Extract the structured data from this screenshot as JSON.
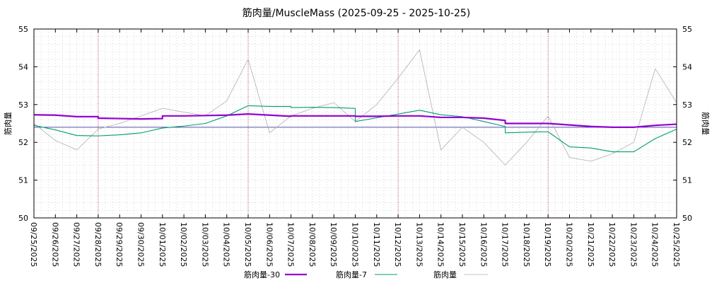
{
  "chart_data": {
    "type": "line",
    "title": "筋肉量/MuscleMass (2025-09-25 - 2025-10-25)",
    "ylabel_left": "筋肉量",
    "ylabel_right": "筋肉量",
    "ylim": [
      50,
      55
    ],
    "yticks": [
      "50",
      "51",
      "52",
      "53",
      "54",
      "55"
    ],
    "xlim": [
      0,
      30
    ],
    "grid": true,
    "xtick_labels": [
      "09/25/2025",
      "09/26/2025",
      "09/27/2025",
      "09/28/2025",
      "09/29/2025",
      "09/30/2025",
      "10/01/2025",
      "10/02/2025",
      "10/03/2025",
      "10/04/2025",
      "10/05/2025",
      "10/06/2025",
      "10/07/2025",
      "10/08/2025",
      "10/09/2025",
      "10/10/2025",
      "10/11/2025",
      "10/12/2025",
      "10/13/2025",
      "10/14/2025",
      "10/15/2025",
      "10/16/2025",
      "10/17/2025",
      "10/18/2025",
      "10/19/2025",
      "10/20/2025",
      "10/21/2025",
      "10/22/2025",
      "10/23/2025",
      "10/24/2025",
      "10/25/2025"
    ],
    "week_markers": [
      3,
      10,
      17,
      24
    ],
    "reference_line": 52.4,
    "series": [
      {
        "name": "筋肉量-30",
        "color": "#9400d3",
        "style": "thick",
        "points": [
          [
            0,
            52.73
          ],
          [
            1,
            52.72
          ],
          [
            2,
            52.68
          ],
          [
            3,
            52.68
          ],
          [
            3,
            52.64
          ],
          [
            4,
            52.63
          ],
          [
            5,
            52.62
          ],
          [
            6,
            52.63
          ],
          [
            6,
            52.7
          ],
          [
            7,
            52.7
          ],
          [
            8,
            52.71
          ],
          [
            9,
            52.72
          ],
          [
            10,
            52.75
          ],
          [
            11,
            52.72
          ],
          [
            12,
            52.69
          ],
          [
            12,
            52.7
          ],
          [
            13,
            52.7
          ],
          [
            14,
            52.7
          ],
          [
            15,
            52.7
          ],
          [
            15,
            52.69
          ],
          [
            16,
            52.69
          ],
          [
            17,
            52.7
          ],
          [
            18,
            52.7
          ],
          [
            19,
            52.66
          ],
          [
            20,
            52.66
          ],
          [
            21,
            52.64
          ],
          [
            22,
            52.58
          ],
          [
            22,
            52.5
          ],
          [
            23,
            52.5
          ],
          [
            24,
            52.5
          ],
          [
            25,
            52.46
          ],
          [
            26,
            52.42
          ],
          [
            27,
            52.4
          ],
          [
            28,
            52.4
          ],
          [
            29,
            52.45
          ],
          [
            30,
            52.48
          ]
        ]
      },
      {
        "name": "筋肉量-7",
        "color": "#009e73",
        "style": "medium",
        "points": [
          [
            0,
            52.45
          ],
          [
            1,
            52.33
          ],
          [
            2,
            52.18
          ],
          [
            3,
            52.17
          ],
          [
            4,
            52.2
          ],
          [
            5,
            52.25
          ],
          [
            6,
            52.38
          ],
          [
            7,
            52.43
          ],
          [
            8,
            52.5
          ],
          [
            9,
            52.7
          ],
          [
            10,
            52.97
          ],
          [
            11,
            52.95
          ],
          [
            12,
            52.95
          ],
          [
            12,
            52.92
          ],
          [
            13,
            52.93
          ],
          [
            14,
            52.92
          ],
          [
            15,
            52.9
          ],
          [
            15,
            52.55
          ],
          [
            16,
            52.65
          ],
          [
            17,
            52.75
          ],
          [
            18,
            52.85
          ],
          [
            19,
            52.73
          ],
          [
            20,
            52.68
          ],
          [
            21,
            52.55
          ],
          [
            22,
            52.42
          ],
          [
            22,
            52.25
          ],
          [
            23,
            52.27
          ],
          [
            24,
            52.28
          ],
          [
            25,
            51.88
          ],
          [
            26,
            51.85
          ],
          [
            27,
            51.75
          ],
          [
            28,
            51.75
          ],
          [
            29,
            52.1
          ],
          [
            30,
            52.35
          ]
        ]
      },
      {
        "name": "筋肉量",
        "color": "#b0b0b0",
        "style": "thin",
        "points": [
          [
            0,
            52.5
          ],
          [
            1,
            52.05
          ],
          [
            2,
            51.8
          ],
          [
            3,
            52.35
          ],
          [
            4,
            52.5
          ],
          [
            5,
            52.7
          ],
          [
            6,
            52.9
          ],
          [
            7,
            52.8
          ],
          [
            8,
            52.7
          ],
          [
            9,
            53.1
          ],
          [
            10,
            54.2
          ],
          [
            11,
            52.25
          ],
          [
            12,
            52.7
          ],
          [
            13,
            52.9
          ],
          [
            14,
            53.05
          ],
          [
            15,
            52.55
          ],
          [
            16,
            53.0
          ],
          [
            17,
            53.7
          ],
          [
            18,
            54.45
          ],
          [
            19,
            51.8
          ],
          [
            20,
            52.4
          ],
          [
            21,
            52.0
          ],
          [
            22,
            51.4
          ],
          [
            23,
            52.0
          ],
          [
            24,
            52.7
          ],
          [
            25,
            51.6
          ],
          [
            26,
            51.5
          ],
          [
            27,
            51.7
          ],
          [
            28,
            52.0
          ],
          [
            29,
            53.95
          ],
          [
            30,
            53.05
          ]
        ]
      }
    ],
    "legend_position": "bottom-center"
  }
}
